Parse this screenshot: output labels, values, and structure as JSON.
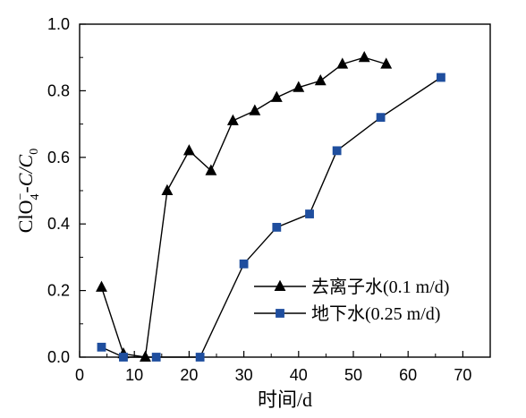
{
  "chart_data": {
    "type": "line",
    "xlabel": "时间/d",
    "ylabel": {
      "prefix": "ClO",
      "subscript": "4",
      "superscript": "−",
      "middle": "-C/",
      "C": "C",
      "zero": "0"
    },
    "xlim": [
      0,
      75
    ],
    "ylim": [
      0.0,
      1.0
    ],
    "xticks": [
      "0",
      "10",
      "20",
      "30",
      "40",
      "50",
      "60",
      "70"
    ],
    "yticks": [
      "0.0",
      "0.2",
      "0.4",
      "0.6",
      "0.8",
      "1.0"
    ],
    "grid": false,
    "legend_position": "bottom-right",
    "series": [
      {
        "name": "去离子水(0.1 m/d)",
        "marker": "triangle",
        "color": "#000000",
        "points": [
          [
            4,
            0.21
          ],
          [
            8,
            0.01
          ],
          [
            12,
            0.0
          ],
          [
            16,
            0.5
          ],
          [
            20,
            0.62
          ],
          [
            24,
            0.56
          ],
          [
            28,
            0.71
          ],
          [
            32,
            0.74
          ],
          [
            36,
            0.78
          ],
          [
            40,
            0.81
          ],
          [
            44,
            0.83
          ],
          [
            48,
            0.88
          ],
          [
            52,
            0.9
          ],
          [
            56,
            0.88
          ]
        ]
      },
      {
        "name": "地下水(0.25 m/d)",
        "marker": "square",
        "color": "#1f4e9e",
        "points": [
          [
            4,
            0.03
          ],
          [
            8,
            0.0
          ],
          [
            14,
            0.0
          ],
          [
            22,
            0.0
          ],
          [
            30,
            0.28
          ],
          [
            36,
            0.39
          ],
          [
            42,
            0.43
          ],
          [
            47,
            0.62
          ],
          [
            55,
            0.72
          ],
          [
            66,
            0.84
          ]
        ]
      }
    ]
  }
}
